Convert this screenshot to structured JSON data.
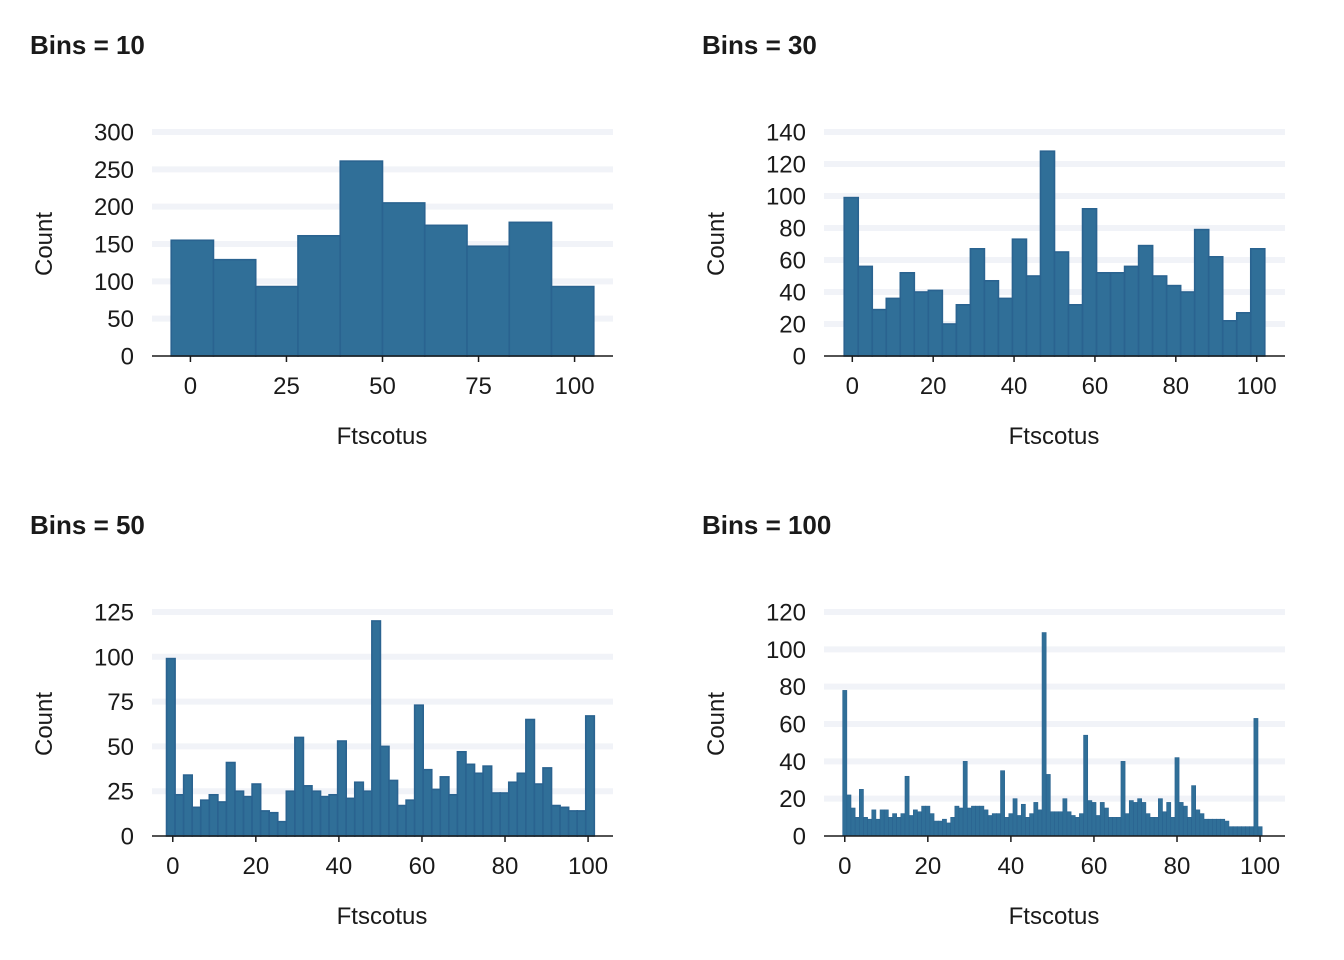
{
  "colors": {
    "bar_fill": "#306f98",
    "bar_edge": "#2a6390",
    "grid": "#f1f3f8",
    "text": "#1a1a1a"
  },
  "chart_data": [
    {
      "type": "bar",
      "title": "Bins = 10",
      "xlabel": "Ftscotus",
      "ylabel": "Count",
      "xlim": [
        -10,
        110
      ],
      "ylim": [
        0,
        300
      ],
      "xticks": [
        0,
        25,
        50,
        75,
        100
      ],
      "yticks": [
        0,
        50,
        100,
        150,
        200,
        250,
        300
      ],
      "grid": true,
      "bin_start": -5,
      "bin_end": 105,
      "values": [
        155,
        129,
        93,
        161,
        261,
        205,
        175,
        147,
        179,
        93
      ]
    },
    {
      "type": "bar",
      "title": "Bins = 30",
      "xlabel": "Ftscotus",
      "ylabel": "Count",
      "xlim": [
        -7,
        107
      ],
      "ylim": [
        0,
        140
      ],
      "xticks": [
        0,
        20,
        40,
        60,
        80,
        100
      ],
      "yticks": [
        0,
        20,
        40,
        60,
        80,
        100,
        120,
        140
      ],
      "grid": true,
      "bin_start": -2,
      "bin_end": 102,
      "values": [
        99,
        56,
        29,
        36,
        52,
        40,
        41,
        20,
        32,
        67,
        47,
        36,
        73,
        50,
        128,
        65,
        32,
        92,
        52,
        52,
        56,
        69,
        50,
        44,
        40,
        79,
        62,
        22,
        27,
        67
      ]
    },
    {
      "type": "bar",
      "title": "Bins = 50",
      "xlabel": "Ftscotus",
      "ylabel": "Count",
      "xlim": [
        -5,
        106
      ],
      "ylim": [
        0,
        125
      ],
      "xticks": [
        0,
        20,
        40,
        60,
        80,
        100
      ],
      "yticks": [
        0,
        25,
        50,
        75,
        100,
        125
      ],
      "grid": true,
      "bin_start": -1.5,
      "bin_end": 101.5,
      "values": [
        99,
        23,
        34,
        16,
        20,
        23,
        19,
        41,
        25,
        22,
        29,
        14,
        13,
        8,
        25,
        55,
        28,
        25,
        22,
        23,
        53,
        21,
        30,
        25,
        120,
        50,
        31,
        17,
        20,
        73,
        37,
        26,
        33,
        23,
        47,
        40,
        35,
        39,
        24,
        24,
        30,
        35,
        65,
        29,
        38,
        17,
        16,
        14,
        14,
        67
      ]
    },
    {
      "type": "bar",
      "title": "Bins = 100",
      "xlabel": "Ftscotus",
      "ylabel": "Count",
      "xlim": [
        -5,
        106
      ],
      "ylim": [
        0,
        120
      ],
      "xticks": [
        0,
        20,
        40,
        60,
        80,
        100
      ],
      "yticks": [
        0,
        20,
        40,
        60,
        80,
        100,
        120
      ],
      "grid": true,
      "bin_start": -0.5,
      "bin_end": 100.5,
      "values": [
        78,
        22,
        15,
        10,
        25,
        10,
        9,
        14,
        9,
        14,
        14,
        10,
        12,
        10,
        12,
        32,
        11,
        14,
        13,
        16,
        16,
        12,
        8,
        8,
        9,
        7,
        10,
        16,
        15,
        40,
        15,
        16,
        16,
        16,
        14,
        11,
        12,
        12,
        35,
        10,
        12,
        20,
        11,
        17,
        10,
        12,
        18,
        14,
        109,
        33,
        13,
        13,
        13,
        20,
        13,
        11,
        10,
        12,
        54,
        19,
        18,
        11,
        18,
        15,
        10,
        10,
        10,
        40,
        12,
        19,
        18,
        20,
        18,
        12,
        10,
        10,
        20,
        13,
        18,
        10,
        42,
        18,
        16,
        10,
        27,
        14,
        12,
        9,
        9,
        9,
        9,
        9,
        8,
        5,
        5,
        5,
        5,
        5,
        5,
        63,
        5
      ]
    }
  ]
}
